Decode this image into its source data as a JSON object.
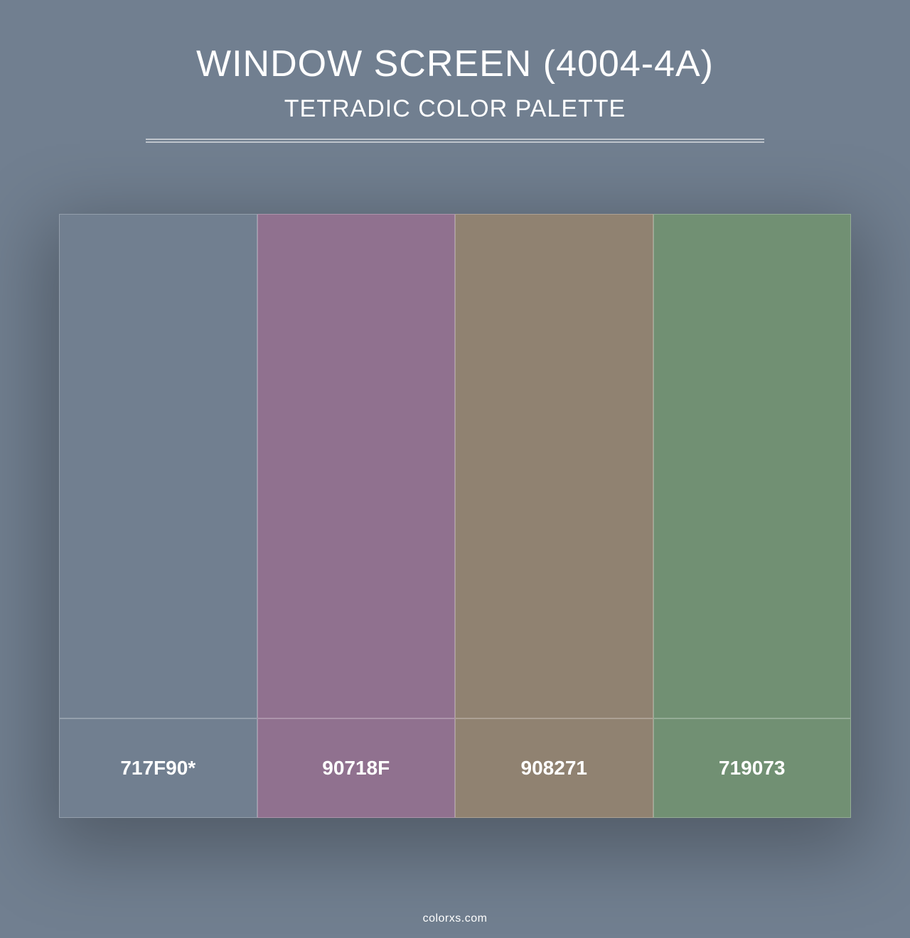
{
  "page": {
    "background_color": "#717f90",
    "text_color": "#ffffff"
  },
  "header": {
    "title": "WINDOW SCREEN (4004-4A)",
    "subtitle": "TETRADIC COLOR PALETTE",
    "title_fontsize": 52,
    "subtitle_fontsize": 34,
    "divider_color": "rgba(255,255,255,0.55)"
  },
  "palette": {
    "type": "infographic",
    "swatch_height": 710,
    "label_height": 140,
    "label_fontsize": 28,
    "label_fontweight": "700",
    "border_color": "rgba(255,255,255,0.25)",
    "shadow": "0 30px 100px 20px rgba(0,0,0,0.28)",
    "swatches": [
      {
        "hex": "#717f90",
        "label": "717F90*"
      },
      {
        "hex": "#90718f",
        "label": "90718F"
      },
      {
        "hex": "#908271",
        "label": "908271"
      },
      {
        "hex": "#719073",
        "label": "719073"
      }
    ]
  },
  "footer": {
    "text": "colorxs.com",
    "fontsize": 16
  }
}
